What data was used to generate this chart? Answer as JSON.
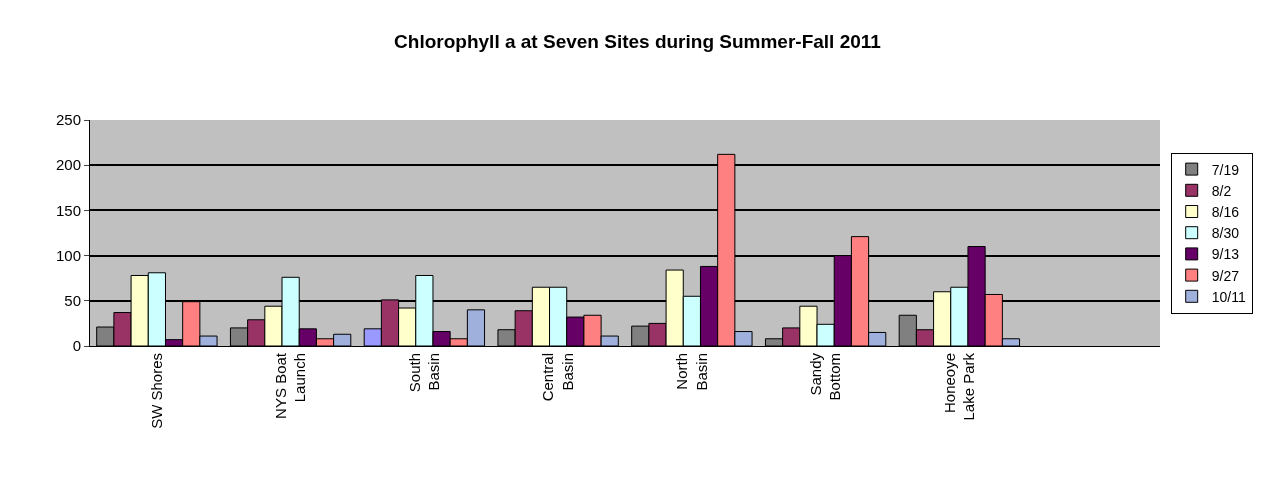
{
  "chart_data": {
    "type": "bar",
    "title": "Chlorophyll a at Seven Sites during Summer-Fall 2011",
    "categories": [
      "SW Shores",
      "NYS Boat\nLaunch",
      "South\nBasin",
      "Central\nBasin",
      "North\nBasin",
      "Sandy\nBottom",
      "Honeoye\nLake Park",
      null
    ],
    "series": [
      {
        "name": "7/19",
        "color": "#808080",
        "colors": [
          "#808080",
          "#808080",
          "#9999ff",
          "#808080",
          "#808080",
          "#808080",
          "#808080",
          "#808080"
        ],
        "values": [
          21,
          20,
          19,
          18,
          22,
          8,
          34,
          null
        ]
      },
      {
        "name": "8/2",
        "color": "#993366",
        "values": [
          37,
          29,
          51,
          39,
          25,
          20,
          18,
          null
        ]
      },
      {
        "name": "8/16",
        "color": "#ffffcc",
        "values": [
          78,
          44,
          42,
          65,
          84,
          44,
          60,
          null
        ]
      },
      {
        "name": "8/30",
        "color": "#ccffff",
        "values": [
          81,
          76,
          78,
          65,
          55,
          24,
          65,
          null
        ]
      },
      {
        "name": "9/13",
        "color": "#660066",
        "values": [
          7,
          19,
          16,
          32,
          88,
          100,
          110,
          null
        ]
      },
      {
        "name": "9/27",
        "color": "#ff8080",
        "values": [
          49,
          8,
          8,
          34,
          212,
          121,
          57,
          null
        ]
      },
      {
        "name": "10/11",
        "color": "#9fb0dc",
        "values": [
          11,
          13,
          40,
          11,
          16,
          15,
          8,
          null
        ]
      }
    ],
    "ylim": [
      0,
      250
    ],
    "yticks": [
      0,
      50,
      100,
      150,
      200,
      250
    ],
    "grid": "y",
    "legend": "right"
  }
}
